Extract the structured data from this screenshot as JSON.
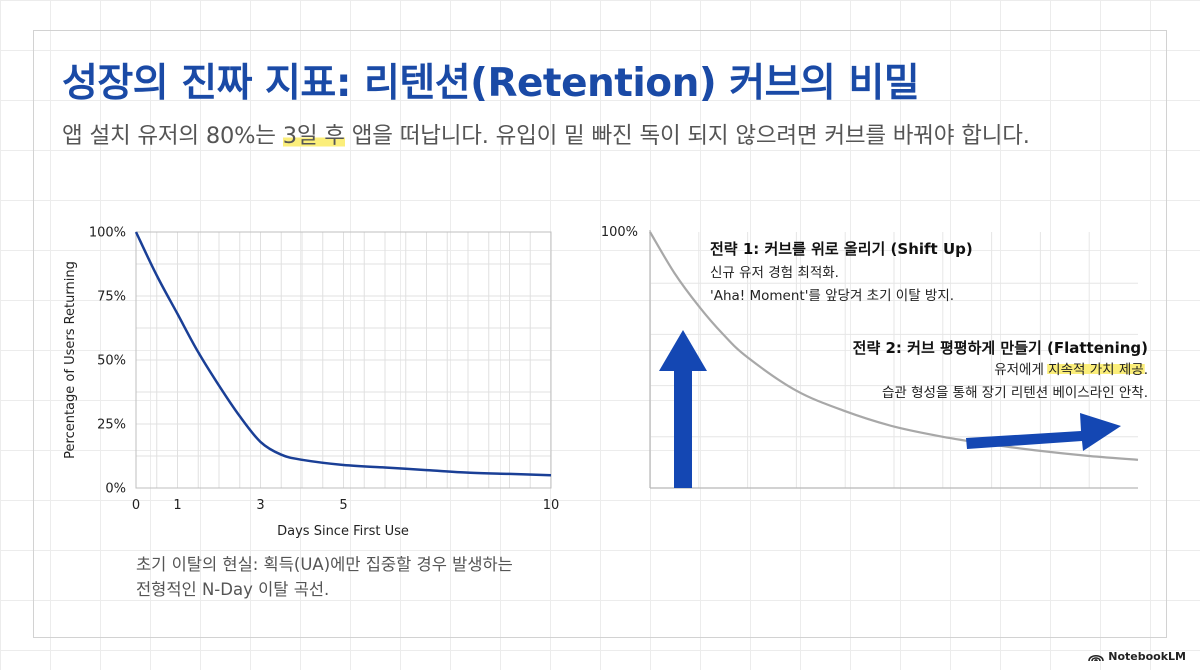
{
  "title": "성장의 진짜 지표: 리텐션(Retention) 커브의 비밀",
  "subtitle": {
    "before": "앱 설치 유저의 80%는 ",
    "highlight": "3일 후",
    "after": " 앱을 떠납니다. 유입이 밑 빠진 독이 되지 않으려면 커브를 바꿔야 합니다."
  },
  "left_note": {
    "line1": "초기 이탈의 현실: 획득(UA)에만 집중할 경우 발생하는",
    "line2": "전형적인 N-Day 이탈 곡선."
  },
  "strategy1": {
    "title": "전략 1: 커브를 위로 올리기 (Shift Up)",
    "line1": "신규 유저 경험 최적화.",
    "line2": "'Aha! Moment'를 앞당겨 초기 이탈 방지."
  },
  "strategy2": {
    "title": "전략 2: 커브 평평하게 만들기 (Flattening)",
    "line1_before": "유저에게 ",
    "line1_highlight": "지속적 가치 제공",
    "line1_after": ".",
    "line2": "습관 형성을 통해 장기 리텐션 베이스라인 안착."
  },
  "logo": "NotebookLM",
  "colors": {
    "title": "#1a4aa6",
    "curve": "#1a3f96",
    "arrow": "#1447b3",
    "concept_curve": "#a8a8a8",
    "highlight": "#fbee7a"
  },
  "chart_data": [
    {
      "type": "line",
      "title": "",
      "xlabel": "Days Since First Use",
      "ylabel": "Percentage of Users Returning",
      "xticks": [
        0,
        1,
        3,
        5,
        10
      ],
      "xtick_labels": [
        "0",
        "1",
        "3",
        "5",
        "10"
      ],
      "yticks": [
        0,
        25,
        50,
        75,
        100
      ],
      "ytick_labels": [
        "0%",
        "25%",
        "50%",
        "75%",
        "100%"
      ],
      "xlim": [
        0,
        10
      ],
      "ylim": [
        0,
        100
      ],
      "grid": true,
      "series": [
        {
          "x": [
            0,
            0.5,
            1,
            1.5,
            2,
            2.5,
            3,
            3.5,
            4,
            5,
            6,
            7,
            8,
            9,
            10
          ],
          "y": [
            100,
            83,
            68,
            53,
            40,
            28,
            18,
            13,
            11,
            9,
            8,
            7,
            6,
            5.5,
            5
          ]
        }
      ]
    },
    {
      "type": "line",
      "yticks": [
        100
      ],
      "ytick_labels": [
        "100%"
      ],
      "grid": true,
      "series": [
        {
          "x": [
            0,
            0.5,
            1,
            1.5,
            2,
            3,
            4,
            5,
            6,
            7,
            8,
            9,
            10
          ],
          "y": [
            100,
            84,
            71,
            60,
            51,
            38,
            30,
            24,
            20,
            17,
            14.5,
            12.5,
            11
          ]
        }
      ],
      "annotations": [
        {
          "kind": "arrow",
          "direction": "up"
        },
        {
          "kind": "arrow",
          "direction": "right"
        }
      ]
    }
  ]
}
